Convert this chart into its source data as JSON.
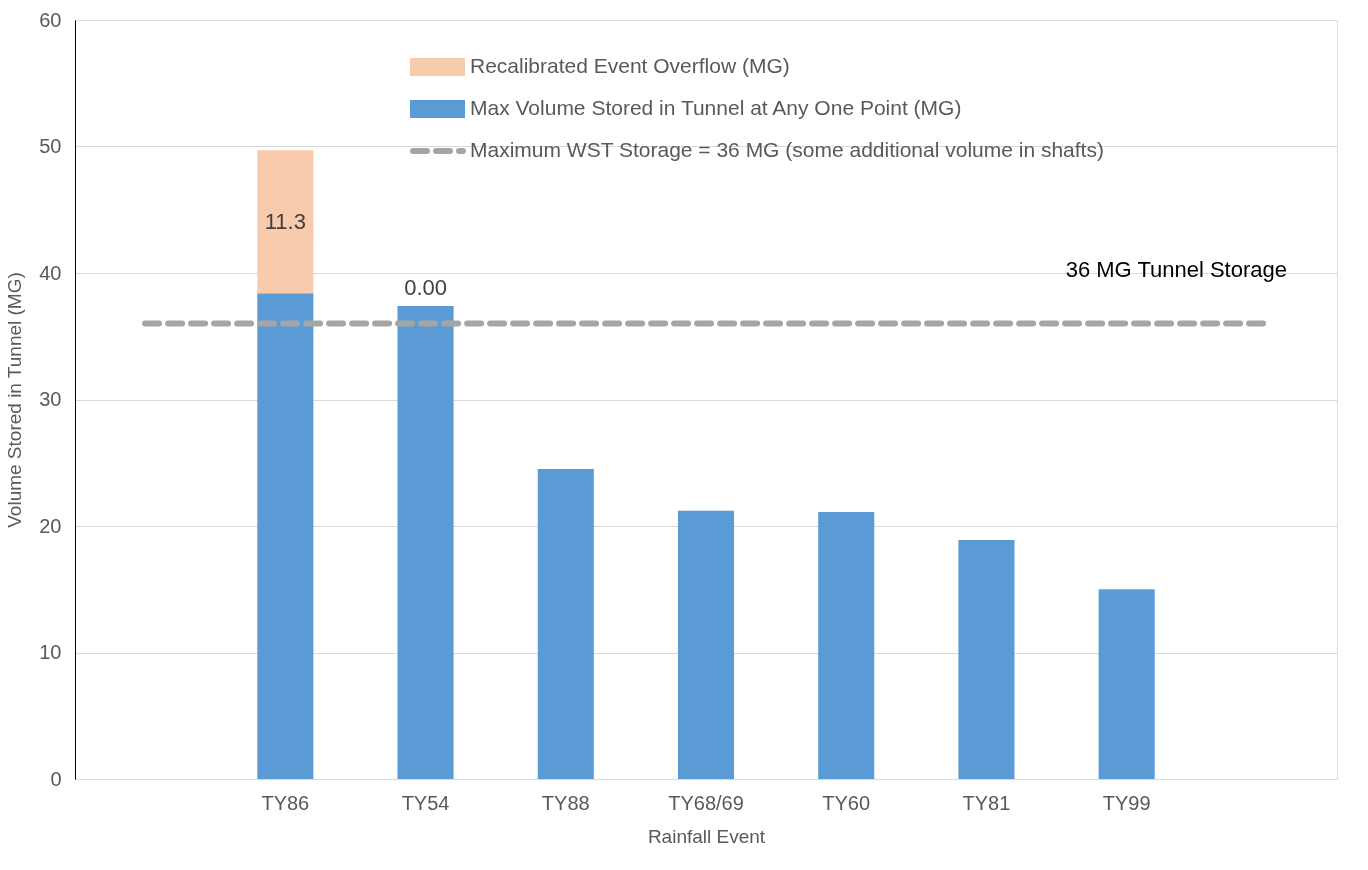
{
  "chart_data": {
    "type": "bar",
    "stacked": true,
    "xlabel": "Rainfall Event",
    "ylabel": "Volume Stored in Tunnel (MG)",
    "categories": [
      null,
      "TY86",
      "TY54",
      "TY88",
      "TY68/69",
      "TY60",
      "TY81",
      "TY99",
      null
    ],
    "series": [
      {
        "name": "Max Volume Stored in Tunnel at Any One Point (MG)",
        "color": "#5b9bd5",
        "values": [
          null,
          38.4,
          37.4,
          24.5,
          21.2,
          21.1,
          18.9,
          15.0,
          null
        ]
      },
      {
        "name": "Recalibrated Event Overflow (MG)",
        "color": "#f8cbad",
        "values": [
          null,
          11.3,
          0.0,
          null,
          null,
          null,
          null,
          null,
          null
        ],
        "value_labels": [
          null,
          "11.3",
          "0.00",
          null,
          null,
          null,
          null,
          null,
          null
        ]
      }
    ],
    "ref_lines": [
      {
        "axis": "y",
        "value": 36,
        "label": "Maximum WST Storage = 36 MG (some additional volume in shafts)",
        "color": "#a5a5a5",
        "line_style": "dashed"
      }
    ],
    "annotations": [
      "36 MG Tunnel Storage"
    ],
    "ylim": [
      0,
      60
    ],
    "yticks": [
      0,
      10,
      20,
      30,
      40,
      50,
      60
    ],
    "grid": "y",
    "legend": "top"
  }
}
